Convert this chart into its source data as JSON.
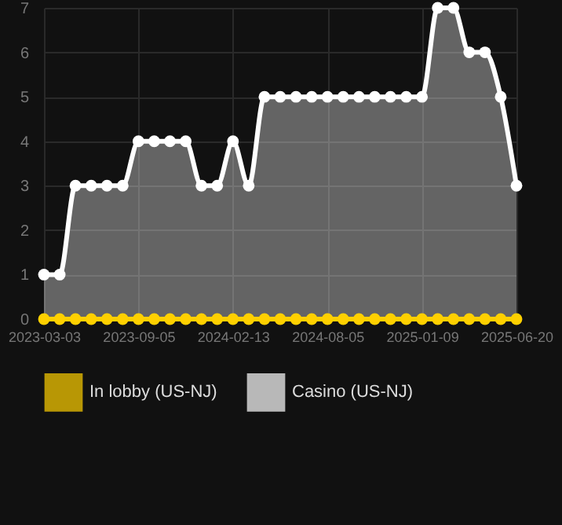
{
  "chart_data": {
    "type": "area",
    "categories": [
      "2023-03-03",
      null,
      null,
      null,
      null,
      null,
      "2023-09-05",
      null,
      null,
      null,
      null,
      null,
      "2024-02-13",
      null,
      null,
      null,
      null,
      null,
      "2024-08-05",
      null,
      null,
      null,
      null,
      null,
      "2025-01-09",
      null,
      null,
      null,
      null,
      null,
      "2025-06-20"
    ],
    "series": [
      {
        "name": "In lobby (US-NJ)",
        "type": "line",
        "color": "#ffd000",
        "values": [
          0,
          0,
          0,
          0,
          0,
          0,
          0,
          0,
          0,
          0,
          0,
          0,
          0,
          0,
          0,
          0,
          0,
          0,
          0,
          0,
          0,
          0,
          0,
          0,
          0,
          0,
          0,
          0,
          0,
          0,
          0
        ]
      },
      {
        "name": "Casino (US-NJ)",
        "color": "#ffffff",
        "values": [
          1,
          1,
          3,
          3,
          3,
          3,
          4,
          4,
          4,
          4,
          3,
          3,
          4,
          3,
          5,
          5,
          5,
          5,
          5,
          5,
          5,
          5,
          5,
          5,
          5,
          7,
          7,
          6,
          6,
          5,
          3
        ]
      }
    ],
    "ylim": [
      0,
      7
    ],
    "yticks": [
      0,
      1,
      2,
      3,
      4,
      5,
      6,
      7
    ],
    "grid": true,
    "legend": "bottom",
    "marker": "circle",
    "line_style": "solid"
  }
}
